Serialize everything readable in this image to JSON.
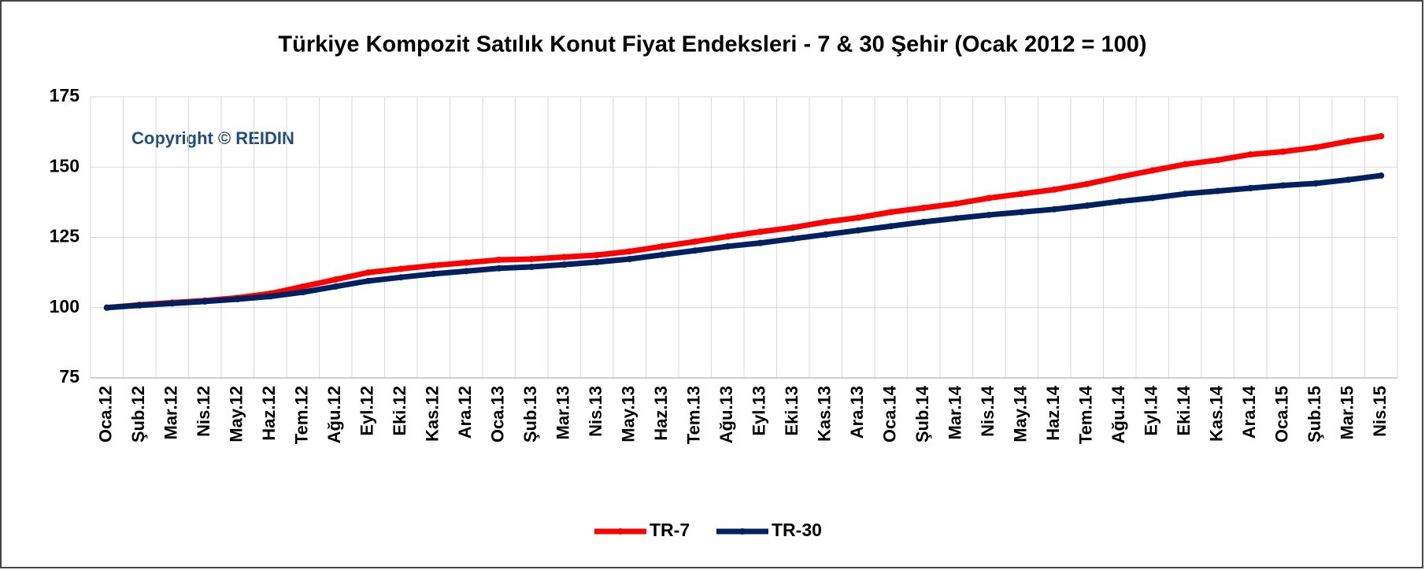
{
  "chart_data": {
    "type": "line",
    "title": "Türkiye Kompozit Satılık Konut Fiyat Endeksleri - 7 & 30 Şehir (Ocak 2012 = 100)",
    "annotation": "Copyright © REIDIN",
    "categories": [
      "Oca.12",
      "Şub.12",
      "Mar.12",
      "Nis.12",
      "May.12",
      "Haz.12",
      "Tem.12",
      "Ağu.12",
      "Eyl.12",
      "Eki.12",
      "Kas.12",
      "Ara.12",
      "Oca.13",
      "Şub.13",
      "Mar.13",
      "Nis.13",
      "May.13",
      "Haz.13",
      "Tem.13",
      "Ağu.13",
      "Eyl.13",
      "Eki.13",
      "Kas.13",
      "Ara.13",
      "Oca.14",
      "Şub.14",
      "Mar.14",
      "Nis.14",
      "May.14",
      "Haz.14",
      "Tem.14",
      "Ağu.14",
      "Eyl.14",
      "Eki.14",
      "Kas.14",
      "Ara.14",
      "Oca.15",
      "Şub.15",
      "Mar.15",
      "Nis.15"
    ],
    "series": [
      {
        "name": "TR-7",
        "color": "#ff0000",
        "values": [
          100,
          101,
          101.8,
          102.5,
          103.5,
          105,
          107.5,
          110,
          112.5,
          113.8,
          115,
          116,
          117,
          117.3,
          118,
          118.7,
          120,
          121.8,
          123.5,
          125.3,
          127,
          128.5,
          130.5,
          132,
          134,
          135.5,
          137,
          139,
          140.5,
          142,
          144,
          146.5,
          148.8,
          151,
          152.5,
          154.5,
          155.5,
          157,
          159.2,
          161
        ]
      },
      {
        "name": "TR-30",
        "color": "#002060",
        "values": [
          100,
          100.8,
          101.5,
          102.2,
          103,
          104,
          105.5,
          107.5,
          109.5,
          110.8,
          112,
          113,
          114,
          114.5,
          115.3,
          116.2,
          117.3,
          118.8,
          120.3,
          121.8,
          123,
          124.5,
          126,
          127.5,
          129,
          130.5,
          131.8,
          133,
          134,
          135,
          136.3,
          137.8,
          139,
          140.5,
          141.5,
          142.5,
          143.5,
          144.2,
          145.5,
          147
        ]
      }
    ],
    "ylim": [
      75,
      175
    ],
    "yticks": [
      75,
      100,
      125,
      150,
      175
    ],
    "grid": true,
    "legend": "bottom"
  }
}
